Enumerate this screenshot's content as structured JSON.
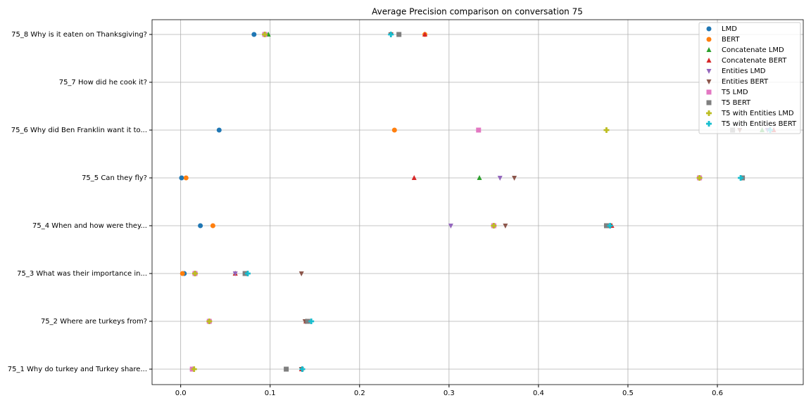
{
  "chart_data": {
    "type": "scatter",
    "title": "Average Precision comparison on conversation 75",
    "categories": [
      "75_1 Why do turkey and Turkey share...",
      "75_2 Where are turkeys from?",
      "75_3 What was their importance in...",
      "75_4 When and how were they...",
      "75_5 Can they fly?",
      "75_6 Why did Ben Franklin want it to...",
      "75_7 How did he cook it?",
      "75_8 Why is it eaten on Thanksgiving?"
    ],
    "xlim": [
      -0.032,
      0.696
    ],
    "xticks": [
      {
        "value": 0,
        "label": "0.0"
      },
      0.1,
      0.2,
      0.3,
      0.4,
      0.5,
      0.6
    ],
    "grid": true,
    "legend": "upper right",
    "series": [
      {
        "name": "LMD",
        "color": "#1f77b4",
        "marker": "circle",
        "values": [
          0.013,
          0.032,
          0.004,
          0.022,
          0.001,
          0.043,
          null,
          0.082
        ]
      },
      {
        "name": "BERT",
        "color": "#ff7f0e",
        "marker": "circle",
        "values": [
          0.013,
          0.032,
          0.002,
          0.036,
          0.006,
          0.239,
          null,
          0.273
        ]
      },
      {
        "name": "Concatenate LMD",
        "color": "#2ca02c",
        "marker": "triangle-up",
        "values": [
          0.013,
          0.14,
          0.061,
          0.481,
          0.334,
          0.65,
          null,
          0.098
        ]
      },
      {
        "name": "Concatenate BERT",
        "color": "#d62728",
        "marker": "triangle-up",
        "values": [
          0.135,
          0.14,
          0.061,
          0.482,
          0.261,
          0.663,
          null,
          0.273
        ]
      },
      {
        "name": "Entities LMD",
        "color": "#9467bd",
        "marker": "triangle-down",
        "values": [
          0.135,
          0.141,
          0.061,
          0.302,
          0.357,
          0.656,
          null,
          0.235
        ]
      },
      {
        "name": "Entities BERT",
        "color": "#8c564b",
        "marker": "triangle-down",
        "values": [
          0.135,
          0.139,
          0.135,
          0.363,
          0.373,
          0.625,
          null,
          0.235
        ]
      },
      {
        "name": "T5 LMD",
        "color": "#e377c2",
        "marker": "square",
        "values": [
          0.013,
          0.032,
          0.016,
          0.35,
          0.58,
          0.333,
          null,
          0.094
        ]
      },
      {
        "name": "T5 BERT",
        "color": "#7f7f7f",
        "marker": "square",
        "values": [
          0.118,
          0.142,
          0.072,
          0.476,
          0.628,
          0.617,
          null,
          0.244
        ]
      },
      {
        "name": "T5 with Entities LMD",
        "color": "#bcbd22",
        "marker": "plus",
        "values": [
          0.015,
          0.032,
          0.016,
          0.35,
          0.58,
          0.476,
          null,
          0.094
        ]
      },
      {
        "name": "T5 with Entities BERT",
        "color": "#17becf",
        "marker": "plus",
        "values": [
          0.136,
          0.146,
          0.075,
          0.48,
          0.626,
          0.659,
          null,
          0.235
        ]
      }
    ]
  }
}
